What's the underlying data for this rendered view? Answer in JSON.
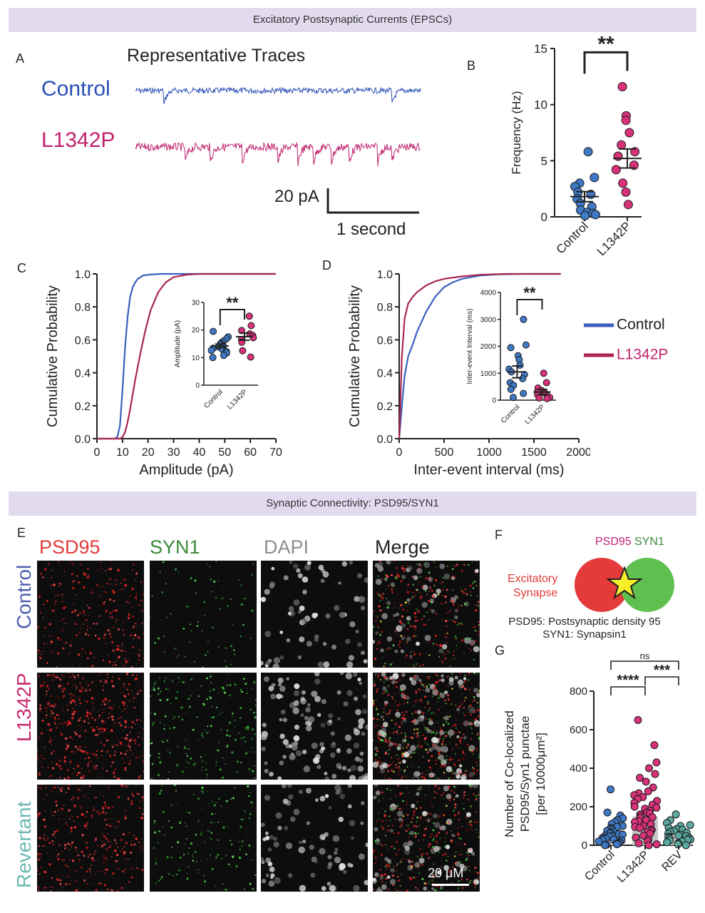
{
  "banners": {
    "top": "Excitatory Postsynaptic Currents (EPSCs)",
    "middle": "Synaptic Connectivity: PSD95/SYN1"
  },
  "panel_labels": [
    "A",
    "B",
    "C",
    "D",
    "E",
    "F",
    "G"
  ],
  "colors": {
    "control_trace": "#2a4fb5",
    "l1342p_trace": "#c0236e",
    "control_cdf": "#3b5fbf",
    "l1342p_cdf": "#a8264f",
    "control_dot": "#3f78c4",
    "l1342p_dot": "#d9317a",
    "rev_dot": "#5aa9a0",
    "psd95": "#e23b3b",
    "syn1": "#3a8a3a",
    "dapi": "#8e8e8e",
    "revertant": "#6db9b1"
  },
  "panel_a": {
    "title": "Representative Traces",
    "control_label": "Control",
    "l1342p_label": "L1342P",
    "scale_y": "20 pA",
    "scale_x": "1 second"
  },
  "legend": {
    "control": "Control",
    "l1342p": "L1342P"
  },
  "panel_e": {
    "channels": [
      "PSD95",
      "SYN1",
      "DAPI",
      "Merge"
    ],
    "rows": [
      "Control",
      "L1342P",
      "Revertant"
    ],
    "scale_bar": "20 μM"
  },
  "panel_f": {
    "psd95": "PSD95",
    "syn1": "SYN1",
    "synapse_line1": "Excitatory",
    "synapse_line2": "Synapse",
    "def1": "PSD95: Postsynaptic density 95",
    "def2": "SYN1: Synapsin1"
  },
  "chart_data": [
    {
      "id": "B",
      "type": "scatter",
      "title": "",
      "ylabel": "Frequency (Hz)",
      "categories": [
        "Control",
        "L1342P"
      ],
      "ylim": [
        0,
        15
      ],
      "yticks": [
        0,
        5,
        10,
        15
      ],
      "series": [
        {
          "name": "Control",
          "values": [
            5.8,
            3.5,
            3.0,
            2.7,
            2.2,
            2.0,
            1.6,
            1.2,
            0.9,
            0.6,
            0.4,
            0.3,
            0.2,
            0.1
          ],
          "mean": 1.8,
          "sem": 0.45
        },
        {
          "name": "L1342P",
          "values": [
            11.6,
            9.0,
            8.6,
            7.5,
            6.4,
            5.8,
            5.4,
            4.6,
            4.2,
            3.0,
            2.2,
            1.1
          ],
          "mean": 5.2,
          "sem": 0.85
        }
      ],
      "significance": "**"
    },
    {
      "id": "C",
      "type": "line",
      "xlabel": "Amplitude (pA)",
      "ylabel": "Cumulative Probability",
      "xlim": [
        0,
        70
      ],
      "ylim": [
        0,
        1
      ],
      "xticks": [
        0,
        10,
        20,
        30,
        40,
        50,
        60,
        70
      ],
      "yticks": [
        0.0,
        0.2,
        0.4,
        0.6,
        0.8,
        1.0
      ],
      "series": [
        {
          "name": "Control",
          "x": [
            0,
            7,
            8,
            9,
            10,
            11,
            12,
            13,
            14,
            15,
            16,
            18,
            20,
            25,
            30,
            70
          ],
          "y": [
            0,
            0,
            0.01,
            0.08,
            0.3,
            0.55,
            0.74,
            0.86,
            0.92,
            0.95,
            0.97,
            0.99,
            0.995,
            1.0,
            1.0,
            1.0
          ]
        },
        {
          "name": "L1342P",
          "x": [
            0,
            9,
            10,
            11,
            12,
            13,
            14,
            15,
            17,
            19,
            21,
            24,
            27,
            30,
            35,
            40,
            70
          ],
          "y": [
            0,
            0,
            0.01,
            0.04,
            0.1,
            0.18,
            0.27,
            0.36,
            0.52,
            0.66,
            0.78,
            0.89,
            0.95,
            0.98,
            0.995,
            1.0,
            1.0
          ]
        }
      ],
      "inset": {
        "type": "scatter",
        "ylabel": "Amplitude (pA)",
        "categories": [
          "Control",
          "L1342P"
        ],
        "ylim": [
          0,
          30
        ],
        "yticks": [
          0,
          10,
          20,
          30
        ],
        "series": [
          {
            "name": "Control",
            "values": [
              19.5,
              17.5,
              16.8,
              16.0,
              15.5,
              15.0,
              14.6,
              14.2,
              13.8,
              13.4,
              13.0,
              12.6,
              12.2,
              11.6,
              10.8,
              10.0
            ],
            "mean": 14.2,
            "sem": 0.7
          },
          {
            "name": "L1342P",
            "values": [
              25.0,
              21.6,
              19.8,
              18.6,
              18.0,
              17.2,
              16.5,
              15.6,
              12.5,
              10.2
            ],
            "mean": 17.6,
            "sem": 1.3
          }
        ],
        "significance": "**"
      }
    },
    {
      "id": "D",
      "type": "line",
      "xlabel": "Inter-event interval (ms)",
      "ylabel": "Cumulative Probability",
      "xlim": [
        0,
        2000
      ],
      "ylim": [
        0,
        1
      ],
      "xticks": [
        0,
        500,
        1000,
        1500,
        2000
      ],
      "yticks": [
        0.0,
        0.2,
        0.4,
        0.6,
        0.8,
        1.0
      ],
      "series": [
        {
          "name": "Control",
          "x": [
            0,
            30,
            60,
            100,
            150,
            200,
            300,
            400,
            500,
            600,
            700,
            900,
            1100,
            1400,
            1800
          ],
          "y": [
            0,
            0.2,
            0.38,
            0.5,
            0.57,
            0.65,
            0.77,
            0.86,
            0.92,
            0.95,
            0.97,
            0.99,
            0.997,
            1.0,
            1.0
          ]
        },
        {
          "name": "L1342P",
          "x": [
            0,
            30,
            60,
            100,
            150,
            200,
            300,
            400,
            500,
            700,
            900,
            1200,
            1800
          ],
          "y": [
            0,
            0.5,
            0.73,
            0.82,
            0.86,
            0.89,
            0.93,
            0.955,
            0.97,
            0.985,
            0.995,
            1.0,
            1.0
          ]
        }
      ],
      "inset": {
        "type": "scatter",
        "ylabel": "Inter-event Interval (ms)",
        "categories": [
          "Control",
          "L1342P"
        ],
        "ylim": [
          0,
          4000
        ],
        "yticks": [
          0,
          1000,
          2000,
          3000,
          4000
        ],
        "series": [
          {
            "name": "Control",
            "values": [
              3000,
              2050,
              1950,
              1650,
              1500,
              1300,
              1150,
              1050,
              950,
              800,
              650,
              550,
              400,
              250,
              100
            ],
            "mean": 1050,
            "sem": 220
          },
          {
            "name": "L1342P",
            "values": [
              1000,
              650,
              450,
              350,
              300,
              250,
              200,
              150,
              100,
              80,
              60
            ],
            "mean": 300,
            "sem": 100
          }
        ],
        "significance": "**"
      }
    },
    {
      "id": "G",
      "type": "scatter",
      "ylabel_lines": [
        "Number of Co-localized",
        "PSD95/Syn1 punctae",
        "[per 10000μm²]"
      ],
      "categories": [
        "Control",
        "L1342P",
        "REV"
      ],
      "ylim": [
        0,
        800
      ],
      "yticks": [
        0,
        200,
        400,
        600,
        800
      ],
      "bars": [
        55,
        150,
        50
      ],
      "series": [
        {
          "name": "Control",
          "values": [
            290,
            170,
            155,
            140,
            130,
            120,
            110,
            100,
            95,
            90,
            85,
            80,
            75,
            70,
            65,
            60,
            58,
            55,
            50,
            48,
            45,
            40,
            38,
            35,
            30,
            28,
            25,
            20,
            15,
            10,
            8,
            5,
            3,
            0
          ]
        },
        {
          "name": "L1342P",
          "values": [
            650,
            520,
            430,
            400,
            370,
            350,
            330,
            300,
            280,
            270,
            260,
            250,
            240,
            230,
            220,
            210,
            200,
            195,
            190,
            180,
            170,
            165,
            160,
            150,
            145,
            140,
            130,
            125,
            120,
            110,
            100,
            95,
            90,
            80,
            75,
            70,
            60,
            50,
            40,
            30,
            20,
            10,
            5,
            0
          ]
        },
        {
          "name": "REV",
          "values": [
            160,
            130,
            115,
            105,
            100,
            90,
            85,
            80,
            75,
            70,
            65,
            60,
            55,
            50,
            48,
            45,
            40,
            38,
            35,
            30,
            28,
            25,
            20,
            15,
            10,
            5,
            0
          ]
        }
      ],
      "significance": [
        {
          "pair": [
            "Control",
            "L1342P"
          ],
          "label": "****"
        },
        {
          "pair": [
            "L1342P",
            "REV"
          ],
          "label": "***"
        },
        {
          "pair": [
            "Control",
            "REV"
          ],
          "label": "ns"
        }
      ]
    }
  ]
}
